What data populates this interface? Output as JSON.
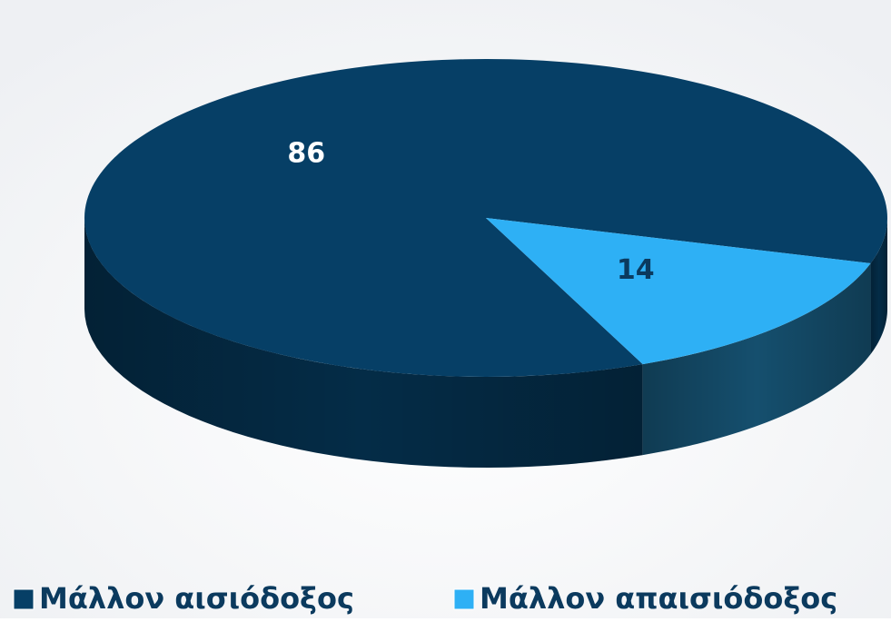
{
  "chart_data": {
    "type": "pie",
    "categories": [
      "Μάλλον αισιόδοξος",
      "Μάλλον απαισιόδοξος"
    ],
    "values": [
      86,
      14
    ],
    "colors": [
      "#063f66",
      "#2eb0f5"
    ],
    "legend": "bottom"
  }
}
